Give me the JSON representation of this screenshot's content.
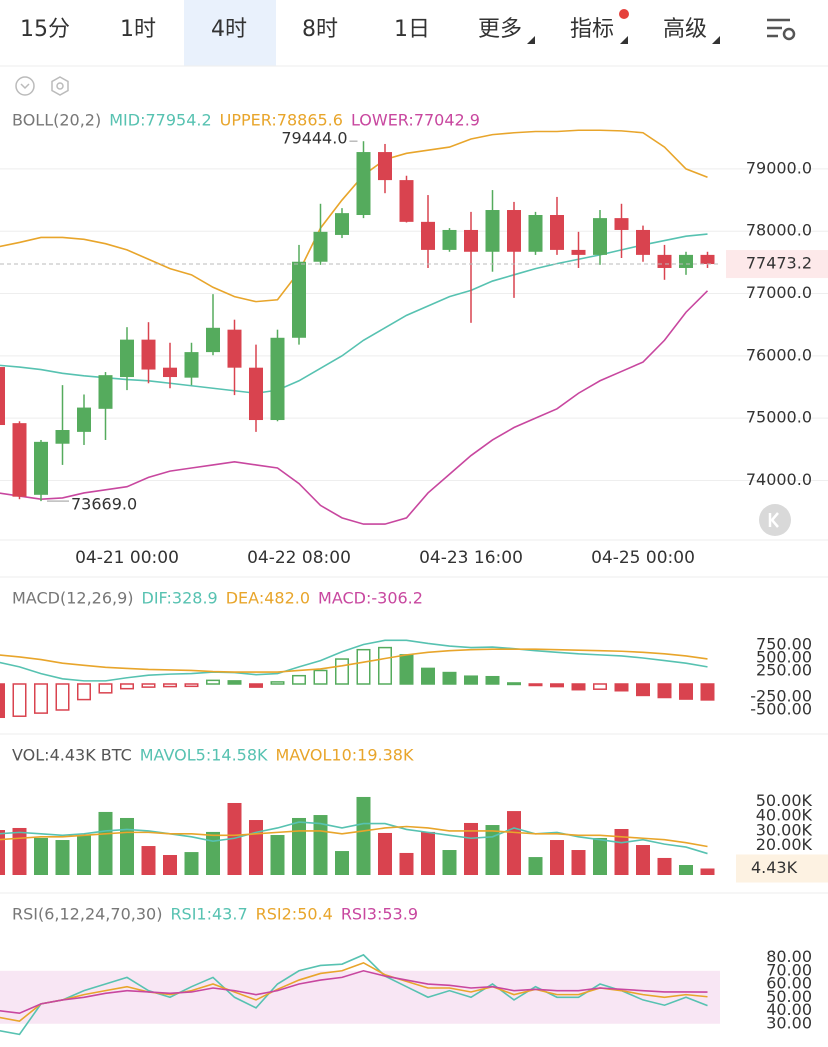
{
  "toolbar": {
    "tabs": [
      "15分",
      "1时",
      "4时",
      "8时",
      "1日",
      "更多",
      "指标",
      "高级"
    ],
    "active": 2
  },
  "chart_data": [
    {
      "type": "candlestick",
      "title": "BOLL(20,2)",
      "categories": [
        null,
        null,
        null,
        null,
        null,
        null,
        "04-21 00:00",
        null,
        null,
        null,
        null,
        null,
        null,
        null,
        "04-22 08:00",
        null,
        null,
        null,
        null,
        null,
        null,
        null,
        "04-23 16:00",
        null,
        null,
        null,
        null,
        null,
        null,
        null,
        "04-25 00:00",
        null,
        null,
        null
      ],
      "open": [
        75820,
        74920,
        73770,
        74590,
        74780,
        75150,
        75660,
        76260,
        75810,
        75650,
        76060,
        76420,
        75810,
        74970,
        76290,
        77510,
        77940,
        78260,
        79270,
        78820,
        78150,
        77700,
        78020,
        77670,
        78340,
        77670,
        78260,
        77700,
        77620,
        78210,
        78020,
        77620,
        77410,
        77620
      ],
      "high": [
        75850,
        74950,
        74650,
        75530,
        75380,
        75740,
        76460,
        76540,
        76210,
        76210,
        76990,
        76580,
        76180,
        76420,
        77780,
        78440,
        78370,
        79444,
        79400,
        78890,
        78580,
        78050,
        78310,
        78660,
        78470,
        78310,
        78550,
        77990,
        78340,
        78440,
        78090,
        77780,
        77670,
        77670
      ],
      "low": [
        74880,
        73700,
        73669,
        74250,
        74570,
        74650,
        75450,
        75560,
        75480,
        75530,
        76010,
        75370,
        74780,
        74950,
        76180,
        77460,
        77890,
        78210,
        78610,
        78140,
        77410,
        77670,
        76530,
        77350,
        76930,
        77620,
        77620,
        77410,
        77460,
        77570,
        77510,
        77220,
        77300,
        77410
      ],
      "close": [
        74890,
        73740,
        74620,
        74810,
        75170,
        75690,
        76260,
        75780,
        75660,
        76060,
        76450,
        75810,
        74970,
        76290,
        77510,
        77990,
        78290,
        79270,
        78820,
        78150,
        77700,
        78020,
        77670,
        78340,
        77670,
        78260,
        77700,
        77620,
        78210,
        78020,
        77620,
        77410,
        77620,
        77473.2
      ],
      "close_label": "77473.2",
      "up_color": "#55ab5d",
      "down_color": "#d9434f",
      "annotations": [
        {
          "label": "79444.0",
          "value": 79444
        },
        {
          "label": "73669.0",
          "value": 73669
        }
      ],
      "series": [
        {
          "name": "MID:77954.2",
          "color": "#57c2b1",
          "values": [
            75850,
            75820,
            75780,
            75720,
            75680,
            75650,
            75620,
            75600,
            75560,
            75520,
            75480,
            75440,
            75400,
            75450,
            75600,
            75800,
            76000,
            76250,
            76450,
            76650,
            76800,
            76950,
            77050,
            77200,
            77300,
            77400,
            77480,
            77550,
            77620,
            77700,
            77780,
            77850,
            77920,
            77954.2
          ]
        },
        {
          "name": "UPPER:78865.6",
          "color": "#e8a52b",
          "values": [
            77750,
            77820,
            77900,
            77900,
            77870,
            77800,
            77700,
            77550,
            77400,
            77300,
            77100,
            76950,
            76870,
            76900,
            77350,
            78050,
            78500,
            78900,
            79150,
            79250,
            79300,
            79350,
            79480,
            79550,
            79580,
            79600,
            79600,
            79620,
            79620,
            79610,
            79580,
            79350,
            79000,
            78865.6
          ]
        },
        {
          "name": "LOWER:77042.9",
          "color": "#c8479f",
          "values": [
            73800,
            73750,
            73700,
            73720,
            73800,
            73850,
            73900,
            74050,
            74150,
            74200,
            74250,
            74300,
            74250,
            74200,
            73950,
            73600,
            73400,
            73300,
            73300,
            73400,
            73800,
            74100,
            74400,
            74650,
            74850,
            75000,
            75150,
            75400,
            75600,
            75750,
            75900,
            76250,
            76700,
            77042.9
          ]
        }
      ],
      "ylim": [
        73045,
        80330
      ],
      "yticks": [
        {
          "value": 74000,
          "label": "74000.0"
        },
        {
          "value": 75000,
          "label": "75000.0"
        },
        {
          "value": 76000,
          "label": "76000.0"
        },
        {
          "value": 77000,
          "label": "77000.0"
        },
        {
          "value": 78000,
          "label": "78000.0"
        },
        {
          "value": 79000,
          "label": "79000.0"
        }
      ],
      "grid": true
    },
    {
      "type": "macd",
      "title": "MACD(12,26,9)",
      "histogram": {
        "name": "MACD:-306.2",
        "color": "#c8479f",
        "values": [
          -640,
          -620,
          -560,
          -500,
          -300,
          -170,
          -90,
          -60,
          -50,
          -45,
          70,
          60,
          -60,
          40,
          160,
          260,
          480,
          660,
          700,
          560,
          300,
          220,
          150,
          140,
          20,
          -20,
          -50,
          -110,
          -100,
          -130,
          -220,
          -260,
          -290,
          -306.2
        ]
      },
      "series": [
        {
          "name": "DIF:328.9",
          "color": "#57c2b1",
          "values": [
            420,
            330,
            200,
            100,
            60,
            60,
            120,
            170,
            190,
            200,
            230,
            220,
            180,
            200,
            330,
            450,
            620,
            760,
            840,
            840,
            780,
            730,
            700,
            710,
            680,
            640,
            610,
            580,
            560,
            540,
            500,
            450,
            400,
            328.9
          ]
        },
        {
          "name": "DEA:482.0",
          "color": "#e8a52b",
          "values": [
            560,
            520,
            470,
            400,
            360,
            320,
            300,
            280,
            270,
            260,
            240,
            230,
            230,
            230,
            260,
            290,
            350,
            420,
            490,
            560,
            610,
            640,
            660,
            670,
            670,
            670,
            660,
            650,
            640,
            630,
            610,
            580,
            540,
            482.0
          ]
        }
      ],
      "ylim": [
        -885,
        1231
      ],
      "yticks": [
        {
          "value": -500,
          "label": "-500.00"
        },
        {
          "value": -250,
          "label": "-250.00"
        },
        {
          "value": 250,
          "label": "250.00"
        },
        {
          "value": 500,
          "label": "500.00"
        },
        {
          "value": 750,
          "label": "750.00"
        }
      ],
      "grid": false
    },
    {
      "type": "volume",
      "title": "VOL:4.43K BTC",
      "histogram": {
        "color": "#555555",
        "values": [
          30.6,
          32.0,
          25.2,
          23.8,
          27.2,
          42.9,
          38.8,
          19.7,
          13.6,
          15.6,
          29.3,
          49.0,
          37.4,
          27.2,
          38.8,
          40.8,
          16.3,
          53.1,
          28.6,
          15.0,
          29.3,
          17.0,
          35.4,
          34.0,
          43.5,
          12.2,
          23.8,
          17.0,
          25.2,
          31.3,
          20.4,
          11.6,
          6.8,
          4.43
        ],
        "value_labels": [
          null,
          null,
          null,
          null,
          null,
          null,
          null,
          null,
          null,
          null,
          null,
          null,
          null,
          null,
          null,
          null,
          null,
          null,
          null,
          null,
          null,
          null,
          null,
          null,
          null,
          null,
          null,
          null,
          null,
          null,
          null,
          null,
          null,
          "4.43K"
        ]
      },
      "series": [
        {
          "name": "MAVOL5:14.58K",
          "color": "#57c2b1",
          "values": [
            28,
            29,
            28,
            27,
            28,
            30,
            31,
            30,
            28,
            26,
            23,
            25,
            29,
            32,
            36,
            35,
            32,
            35,
            35,
            31,
            29,
            27,
            25,
            26,
            32,
            28,
            29,
            26,
            24,
            22,
            24,
            21,
            19,
            14.58
          ]
        },
        {
          "name": "MAVOL10:19.38K",
          "color": "#e8a52b",
          "values": [
            24,
            25,
            26,
            26,
            27,
            28,
            29,
            29,
            28,
            28,
            27,
            27,
            28,
            29,
            30,
            30,
            28,
            30,
            32,
            33,
            32,
            30,
            30,
            30,
            29,
            28,
            28,
            27,
            27,
            26,
            25,
            24,
            22,
            19.38
          ]
        }
      ],
      "ylim": [
        0,
        66
      ],
      "yticks": [
        {
          "value": 20,
          "label": "20.00K"
        },
        {
          "value": 30,
          "label": "30.00K"
        },
        {
          "value": 40,
          "label": "40.00K"
        },
        {
          "value": 50,
          "label": "50.00K"
        }
      ],
      "grid": false
    },
    {
      "type": "line",
      "title": "RSI(6,12,24,70,30)",
      "band": [
        30,
        70
      ],
      "band_color": "#f8e6f4",
      "series": [
        {
          "name": "RSI1:43.7",
          "color": "#57c2b1",
          "values": [
            25,
            22,
            45,
            48,
            55,
            60,
            65,
            55,
            50,
            58,
            65,
            50,
            42,
            60,
            70,
            74,
            75,
            82,
            66,
            58,
            50,
            55,
            50,
            60,
            48,
            58,
            50,
            50,
            60,
            55,
            48,
            44,
            50,
            43.7
          ]
        },
        {
          "name": "RSI2:50.4",
          "color": "#e8a52b",
          "values": [
            35,
            32,
            45,
            48,
            52,
            55,
            58,
            54,
            52,
            55,
            60,
            54,
            48,
            56,
            63,
            68,
            70,
            76,
            67,
            62,
            57,
            57,
            54,
            58,
            52,
            56,
            52,
            52,
            57,
            55,
            52,
            50,
            52,
            50.4
          ]
        },
        {
          "name": "RSI3:53.9",
          "color": "#c8479f",
          "values": [
            40,
            38,
            45,
            48,
            50,
            53,
            55,
            54,
            53,
            54,
            57,
            55,
            52,
            55,
            60,
            63,
            65,
            70,
            66,
            63,
            60,
            59,
            57,
            58,
            55,
            56,
            55,
            55,
            57,
            56,
            55,
            54,
            54,
            53.9
          ]
        }
      ],
      "ylim": [
        17,
        97
      ],
      "yticks": [
        {
          "value": 30,
          "label": "30.00"
        },
        {
          "value": 40,
          "label": "40.00"
        },
        {
          "value": 50,
          "label": "50.00"
        },
        {
          "value": 60,
          "label": "60.00"
        },
        {
          "value": 70,
          "label": "70.00"
        },
        {
          "value": 80,
          "label": "80.00"
        }
      ],
      "grid": false
    }
  ]
}
